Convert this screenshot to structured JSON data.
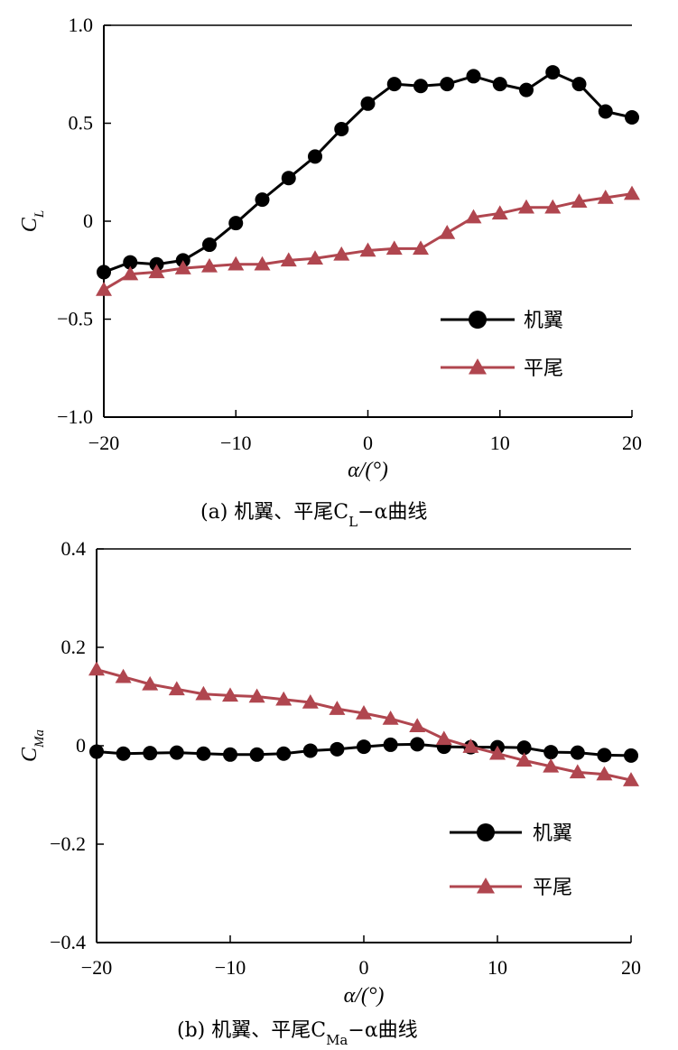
{
  "chart_data": [
    {
      "type": "line",
      "panel_label": "(a)",
      "caption": "(a) 机翼、平尾C",
      "caption_sub": "L",
      "caption_tail": "−α曲线",
      "xlabel": "α/(°)",
      "ylabel": "C",
      "ylabel_sub": "L",
      "xlim": [
        -20,
        20
      ],
      "ylim": [
        -1.0,
        1.0
      ],
      "xticks": [
        -20,
        -10,
        0,
        10,
        20
      ],
      "xtick_labels": [
        "−20",
        "−10",
        "0",
        "10",
        "20"
      ],
      "yticks": [
        -1.0,
        -0.5,
        0,
        0.5,
        1.0
      ],
      "ytick_labels": [
        "−1.0",
        "−0.5",
        "0",
        "0.5",
        "1.0"
      ],
      "grid": false,
      "legend_position": "lower-right",
      "x": [
        -20,
        -18,
        -16,
        -14,
        -12,
        -10,
        -8,
        -6,
        -4,
        -2,
        0,
        2,
        4,
        6,
        8,
        10,
        12,
        14,
        16,
        18,
        20
      ],
      "series": [
        {
          "name": "机翼",
          "marker": "circle",
          "color": "#000000",
          "values": [
            -0.26,
            -0.21,
            -0.22,
            -0.2,
            -0.12,
            -0.01,
            0.11,
            0.22,
            0.33,
            0.47,
            0.6,
            0.7,
            0.69,
            0.7,
            0.74,
            0.7,
            0.67,
            0.76,
            0.7,
            0.56,
            0.53
          ]
        },
        {
          "name": "平尾",
          "marker": "triangle",
          "color": "#b0464f",
          "values": [
            -0.35,
            -0.27,
            -0.26,
            -0.24,
            -0.23,
            -0.22,
            -0.22,
            -0.2,
            -0.19,
            -0.17,
            -0.15,
            -0.14,
            -0.14,
            -0.06,
            0.02,
            0.04,
            0.07,
            0.07,
            0.1,
            0.12,
            0.14
          ]
        }
      ]
    },
    {
      "type": "line",
      "panel_label": "(b)",
      "caption": "(b) 机翼、平尾C",
      "caption_sub": "Ma",
      "caption_tail": "−α曲线",
      "xlabel": "α/(°)",
      "ylabel": "C",
      "ylabel_sub": "Ma",
      "xlim": [
        -20,
        20
      ],
      "ylim": [
        -0.4,
        0.4
      ],
      "xticks": [
        -20,
        -10,
        0,
        10,
        20
      ],
      "xtick_labels": [
        "−20",
        "−10",
        "0",
        "10",
        "20"
      ],
      "yticks": [
        -0.4,
        -0.2,
        0,
        0.2,
        0.4
      ],
      "ytick_labels": [
        "−0.4",
        "−0.2",
        "0",
        "0.2",
        "0.4"
      ],
      "grid": false,
      "legend_position": "lower-right",
      "x": [
        -20,
        -18,
        -16,
        -14,
        -12,
        -10,
        -8,
        -6,
        -4,
        -2,
        0,
        2,
        4,
        6,
        8,
        10,
        12,
        14,
        16,
        18,
        20
      ],
      "series": [
        {
          "name": "机翼",
          "marker": "circle",
          "color": "#000000",
          "values": [
            -0.012,
            -0.016,
            -0.015,
            -0.014,
            -0.016,
            -0.018,
            -0.018,
            -0.016,
            -0.01,
            -0.007,
            -0.002,
            0.002,
            0.003,
            -0.002,
            -0.003,
            -0.003,
            -0.004,
            -0.013,
            -0.014,
            -0.019,
            -0.02
          ]
        },
        {
          "name": "平尾",
          "marker": "triangle",
          "color": "#b0464f",
          "values": [
            0.155,
            0.14,
            0.125,
            0.115,
            0.105,
            0.102,
            0.1,
            0.094,
            0.088,
            0.075,
            0.066,
            0.055,
            0.04,
            0.014,
            -0.002,
            -0.016,
            -0.03,
            -0.042,
            -0.054,
            -0.058,
            -0.07
          ]
        }
      ]
    }
  ]
}
